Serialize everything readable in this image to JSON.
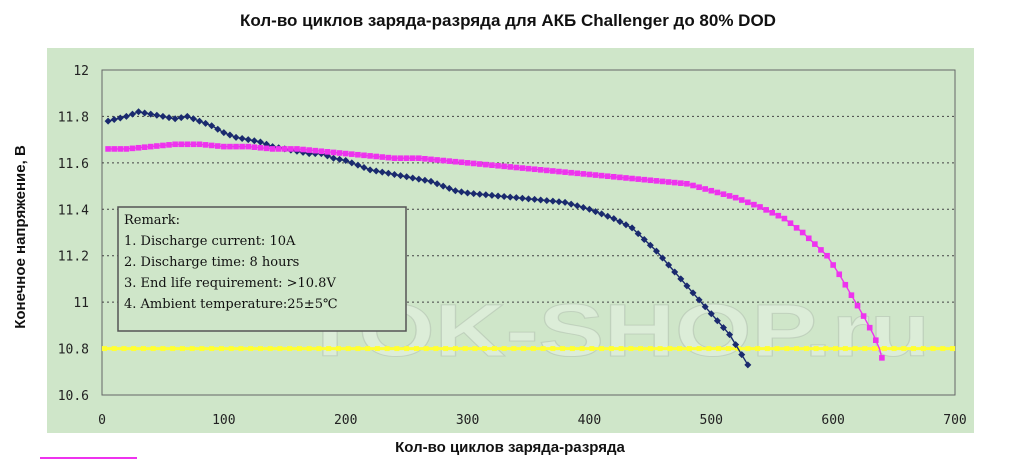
{
  "chart_data": {
    "type": "line",
    "title": "Кол-во циклов заряда-разряда для АКБ Challenger до 80% DOD",
    "xlabel": "Кол-во циклов заряда-разряда",
    "ylabel": "Конечное напряжение, В",
    "xlim": [
      0,
      700
    ],
    "ylim": [
      10.6,
      12
    ],
    "x_ticks": [
      "0",
      "100",
      "200",
      "300",
      "400",
      "500",
      "600",
      "700"
    ],
    "y_ticks": [
      "10.6",
      "10.8",
      "11",
      "11.2",
      "11.4",
      "11.6",
      "11.8",
      "12"
    ],
    "grid": "horizontal-dotted",
    "colors": {
      "background": "#cfe6c9",
      "series_blue": "#1a2a6e",
      "series_magenta": "#ee33ee",
      "limit_line": "#ffff33"
    },
    "remark": [
      "Remark:",
      "1. Discharge current: 10A",
      "2. Discharge time: 8 hours",
      "3. End life requirement: >10.8V",
      "4. Ambient temperature:25±5℃"
    ],
    "watermark": "TOK-SHOP.ru",
    "limit": {
      "y": 10.8
    },
    "series": [
      {
        "color": "#1a2a6e",
        "marker": "diamond",
        "points": [
          [
            5,
            11.78
          ],
          [
            20,
            11.8
          ],
          [
            30,
            11.82
          ],
          [
            40,
            11.81
          ],
          [
            50,
            11.8
          ],
          [
            60,
            11.79
          ],
          [
            70,
            11.8
          ],
          [
            80,
            11.78
          ],
          [
            90,
            11.76
          ],
          [
            100,
            11.73
          ],
          [
            110,
            11.71
          ],
          [
            120,
            11.7
          ],
          [
            130,
            11.69
          ],
          [
            140,
            11.67
          ],
          [
            150,
            11.66
          ],
          [
            160,
            11.65
          ],
          [
            170,
            11.64
          ],
          [
            180,
            11.64
          ],
          [
            190,
            11.62
          ],
          [
            200,
            11.61
          ],
          [
            210,
            11.59
          ],
          [
            220,
            11.57
          ],
          [
            230,
            11.56
          ],
          [
            240,
            11.55
          ],
          [
            250,
            11.54
          ],
          [
            260,
            11.53
          ],
          [
            270,
            11.52
          ],
          [
            280,
            11.5
          ],
          [
            290,
            11.48
          ],
          [
            300,
            11.47
          ],
          [
            320,
            11.46
          ],
          [
            340,
            11.45
          ],
          [
            360,
            11.44
          ],
          [
            380,
            11.43
          ],
          [
            400,
            11.4
          ],
          [
            420,
            11.36
          ],
          [
            435,
            11.32
          ],
          [
            445,
            11.27
          ],
          [
            455,
            11.22
          ],
          [
            465,
            11.16
          ],
          [
            475,
            11.1
          ],
          [
            485,
            11.04
          ],
          [
            495,
            10.98
          ],
          [
            505,
            10.92
          ],
          [
            515,
            10.86
          ],
          [
            522,
            10.8
          ],
          [
            530,
            10.73
          ]
        ]
      },
      {
        "color": "#ee33ee",
        "marker": "square",
        "points": [
          [
            5,
            11.66
          ],
          [
            20,
            11.66
          ],
          [
            40,
            11.67
          ],
          [
            60,
            11.68
          ],
          [
            80,
            11.68
          ],
          [
            100,
            11.67
          ],
          [
            120,
            11.67
          ],
          [
            140,
            11.66
          ],
          [
            160,
            11.66
          ],
          [
            180,
            11.65
          ],
          [
            200,
            11.64
          ],
          [
            220,
            11.63
          ],
          [
            240,
            11.62
          ],
          [
            260,
            11.62
          ],
          [
            280,
            11.61
          ],
          [
            300,
            11.6
          ],
          [
            320,
            11.59
          ],
          [
            340,
            11.58
          ],
          [
            360,
            11.57
          ],
          [
            380,
            11.56
          ],
          [
            400,
            11.55
          ],
          [
            420,
            11.54
          ],
          [
            440,
            11.53
          ],
          [
            460,
            11.52
          ],
          [
            480,
            11.51
          ],
          [
            500,
            11.48
          ],
          [
            520,
            11.45
          ],
          [
            540,
            11.41
          ],
          [
            560,
            11.36
          ],
          [
            575,
            11.3
          ],
          [
            585,
            11.25
          ],
          [
            595,
            11.2
          ],
          [
            605,
            11.12
          ],
          [
            615,
            11.03
          ],
          [
            625,
            10.94
          ],
          [
            633,
            10.86
          ],
          [
            638,
            10.8
          ],
          [
            640,
            10.76
          ]
        ]
      }
    ]
  }
}
